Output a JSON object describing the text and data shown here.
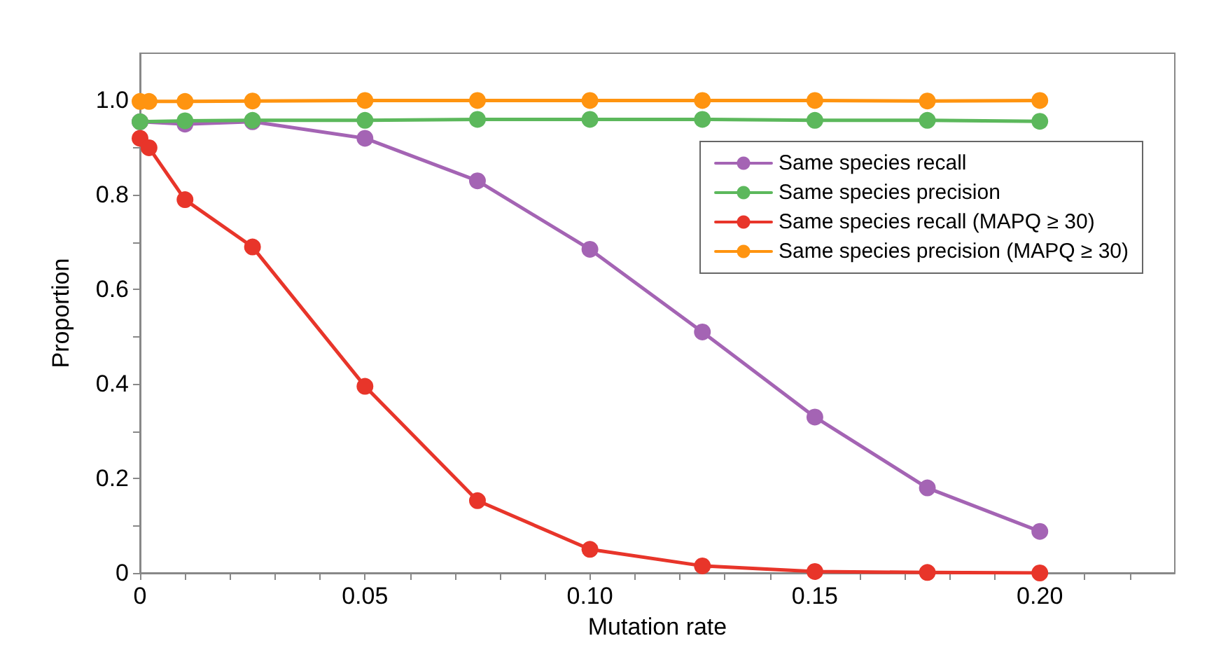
{
  "chart_data": {
    "type": "line",
    "xlabel": "Mutation rate",
    "ylabel": "Proportion",
    "xlim": [
      0,
      0.23
    ],
    "xticks": [
      {
        "value": 0,
        "label": "0"
      },
      {
        "value": 0.01,
        "label": null
      },
      {
        "value": 0.02,
        "label": null
      },
      {
        "value": 0.03,
        "label": null
      },
      {
        "value": 0.04,
        "label": null
      },
      {
        "value": 0.05,
        "label": "0.05"
      },
      {
        "value": 0.06,
        "label": null
      },
      {
        "value": 0.07,
        "label": null
      },
      {
        "value": 0.08,
        "label": null
      },
      {
        "value": 0.09,
        "label": null
      },
      {
        "value": 0.1,
        "label": "0.10"
      },
      {
        "value": 0.11,
        "label": null
      },
      {
        "value": 0.12,
        "label": null
      },
      {
        "value": 0.13,
        "label": null
      },
      {
        "value": 0.14,
        "label": null
      },
      {
        "value": 0.15,
        "label": "0.15"
      },
      {
        "value": 0.16,
        "label": null
      },
      {
        "value": 0.17,
        "label": null
      },
      {
        "value": 0.18,
        "label": null
      },
      {
        "value": 0.19,
        "label": null
      },
      {
        "value": 0.2,
        "label": "0.20"
      },
      {
        "value": 0.21,
        "label": null
      },
      {
        "value": 0.22,
        "label": null
      }
    ],
    "ylim": [
      0,
      1.1
    ],
    "yticks": [
      {
        "value": 0,
        "label": "0"
      },
      {
        "value": 0.1,
        "label": null
      },
      {
        "value": 0.2,
        "label": "0.2"
      },
      {
        "value": 0.3,
        "label": null
      },
      {
        "value": 0.4,
        "label": "0.4"
      },
      {
        "value": 0.5,
        "label": null
      },
      {
        "value": 0.6,
        "label": "0.6"
      },
      {
        "value": 0.7,
        "label": null
      },
      {
        "value": 0.8,
        "label": "0.8"
      },
      {
        "value": 0.9,
        "label": null
      },
      {
        "value": 1.0,
        "label": "1.0"
      }
    ],
    "grid": false,
    "legend": "top right",
    "marker": "circle",
    "line_style": "solid",
    "series": [
      {
        "name": "Same species recall",
        "color": "#a464b4",
        "x": [
          0,
          0.01,
          0.025,
          0.05,
          0.075,
          0.1,
          0.125,
          0.15,
          0.175,
          0.2
        ],
        "values": [
          0.955,
          0.95,
          0.955,
          0.92,
          0.83,
          0.685,
          0.51,
          0.33,
          0.18,
          0.088
        ]
      },
      {
        "name": "Same species precision",
        "color": "#5cb85c",
        "x": [
          0,
          0.01,
          0.025,
          0.05,
          0.075,
          0.1,
          0.125,
          0.15,
          0.175,
          0.2
        ],
        "values": [
          0.955,
          0.957,
          0.958,
          0.958,
          0.96,
          0.96,
          0.96,
          0.958,
          0.958,
          0.956
        ]
      },
      {
        "name": "Same species recall (MAPQ ≥ 30)",
        "color": "#e8352a",
        "x": [
          0,
          0.002,
          0.01,
          0.025,
          0.05,
          0.075,
          0.1,
          0.125,
          0.15,
          0.175,
          0.2
        ],
        "values": [
          0.92,
          0.9,
          0.79,
          0.69,
          0.395,
          0.153,
          0.05,
          0.015,
          0.003,
          0.001,
          0
        ]
      },
      {
        "name": "Same species precision (MAPQ ≥ 30)",
        "color": "#ff9410",
        "x": [
          0,
          0.002,
          0.01,
          0.025,
          0.05,
          0.075,
          0.1,
          0.125,
          0.15,
          0.175,
          0.2
        ],
        "values": [
          0.998,
          0.998,
          0.998,
          0.999,
          1.0,
          1.0,
          1.0,
          1.0,
          1.0,
          0.999,
          1.0
        ]
      }
    ]
  }
}
